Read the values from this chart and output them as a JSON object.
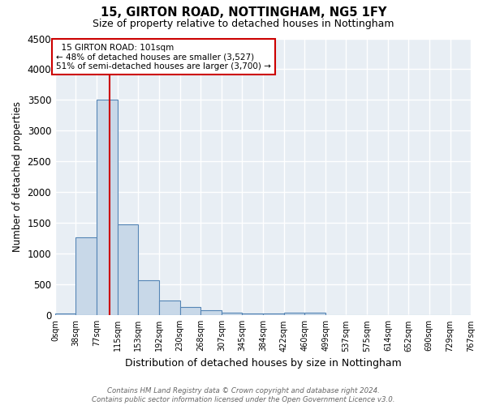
{
  "title1": "15, GIRTON ROAD, NOTTINGHAM, NG5 1FY",
  "title2": "Size of property relative to detached houses in Nottingham",
  "xlabel": "Distribution of detached houses by size in Nottingham",
  "ylabel": "Number of detached properties",
  "footnote": "Contains HM Land Registry data © Crown copyright and database right 2024.\nContains public sector information licensed under the Open Government Licence v3.0.",
  "bin_edges": [
    0,
    38,
    77,
    115,
    153,
    192,
    230,
    268,
    307,
    345,
    384,
    422,
    460,
    499,
    537,
    575,
    614,
    652,
    690,
    729,
    767
  ],
  "bin_counts": [
    30,
    1270,
    3500,
    1480,
    575,
    245,
    130,
    80,
    45,
    30,
    35,
    40,
    50,
    10,
    0,
    0,
    0,
    0,
    0,
    0
  ],
  "bar_fill": "#c8d8e8",
  "bar_edge": "#5585b5",
  "property_size": 101,
  "property_label": "15 GIRTON ROAD: 101sqm",
  "annotation_line1": "← 48% of detached houses are smaller (3,527)",
  "annotation_line2": "51% of semi-detached houses are larger (3,700) →",
  "vline_color": "#cc0000",
  "annotation_box_color": "#cc0000",
  "ylim": [
    0,
    4500
  ],
  "yticks": [
    0,
    500,
    1000,
    1500,
    2000,
    2500,
    3000,
    3500,
    4000,
    4500
  ],
  "bg_color": "#e8eef4",
  "grid_color": "white"
}
